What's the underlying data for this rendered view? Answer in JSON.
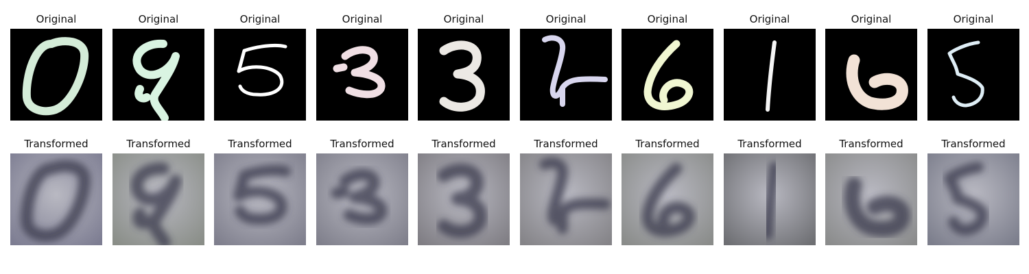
{
  "titles": {
    "original": "Original",
    "transformed": "Transformed"
  },
  "digits": [
    {
      "original_label": "Original",
      "transformed_label": "Transformed",
      "digit": "0",
      "original_color": "#d4ecd8",
      "transformed_tone": "#7d7d92"
    },
    {
      "original_label": "Original",
      "transformed_label": "Transformed",
      "digit": "9",
      "original_color": "#d9f4e2",
      "transformed_tone": "#8a8e88"
    },
    {
      "original_label": "Original",
      "transformed_label": "Transformed",
      "digit": "5",
      "original_color": "#ffffff",
      "transformed_tone": "#7f7f8d"
    },
    {
      "original_label": "Original",
      "transformed_label": "Transformed",
      "digit": "3",
      "original_color": "#f0dfe4",
      "transformed_tone": "#80808c"
    },
    {
      "original_label": "Original",
      "transformed_label": "Transformed",
      "digit": "3",
      "original_color": "#ece9e4",
      "transformed_tone": "#807e84"
    },
    {
      "original_label": "Original",
      "transformed_label": "Transformed",
      "digit": "2",
      "original_color": "#d8d6ee",
      "transformed_tone": "#858488"
    },
    {
      "original_label": "Original",
      "transformed_label": "Transformed",
      "digit": "6",
      "original_color": "#f1f7d2",
      "transformed_tone": "#8a8c8a"
    },
    {
      "original_label": "Original",
      "transformed_label": "Transformed",
      "digit": "1",
      "original_color": "#f5f5f5",
      "transformed_tone": "#6e6f73"
    },
    {
      "original_label": "Original",
      "transformed_label": "Transformed",
      "digit": "6",
      "original_color": "#f2e2d6",
      "transformed_tone": "#8b8c8c"
    },
    {
      "original_label": "Original",
      "transformed_label": "Transformed",
      "digit": "5",
      "original_color": "#dfeef6",
      "transformed_tone": "#7c7e8c"
    }
  ]
}
